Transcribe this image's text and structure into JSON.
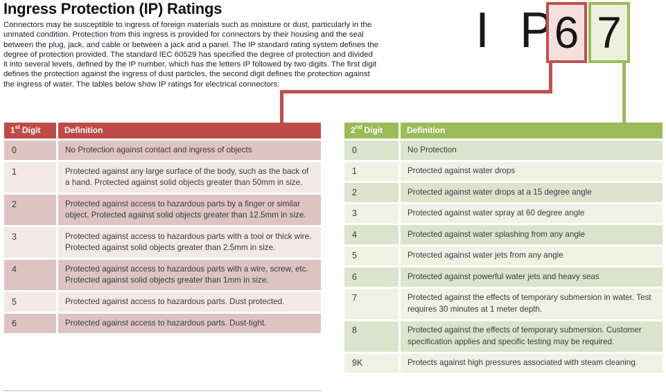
{
  "theme": {
    "red_accent": "#c0504d",
    "red_header_bg": "#bf4b48",
    "red_row_dark": "#ddc4c2",
    "red_row_light": "#f2e8e7",
    "red_box_fill": "#f4dfde",
    "green_accent": "#9bbb59",
    "green_header_bg": "#9bbb59",
    "green_row_dark": "#dce3cc",
    "green_row_light": "#eff1e4",
    "green_box_fill": "#ecf0dd",
    "text_ink": "#20202b",
    "table_text": "#3b3b40"
  },
  "header": {
    "title": "Ingress Protection (IP) Ratings",
    "intro": "Connectors may be susceptible to ingress of foreign materials such as moisture or dust, particularly in the unmated condition. Protection from this ingress is provided for connectors by their housing and the seal between the plug, jack, and cable or between a jack and a panel. The IP standard rating system defines the degree of protection provided. The standard IEC 60529 has specified the degree of protection and divided it into several levels, defined by the IP number, which has the letters IP followed by two digits. The first digit defines the protection against the ingress of dust particles, the second digit defines the protection against the ingress of water. The tables below show IP ratings for electrical connectors:"
  },
  "ip_example": {
    "prefix": "I P",
    "first_digit": "6",
    "second_digit": "7"
  },
  "first_digit_table": {
    "header": {
      "number": "1",
      "ordinal": "st",
      "word": "Digit",
      "definition": "Definition"
    },
    "rows": [
      {
        "digit": "0",
        "definition": "No Protection against contact and ingress of objects"
      },
      {
        "digit": "1",
        "definition": "Protected against any large surface of the body, such as the back of a hand. Protected against solid objects greater than 50mm in size."
      },
      {
        "digit": "2",
        "definition": "Protected against access to hazardous parts by a finger or similar object. Protected against solid objects greater than 12.5mm in size."
      },
      {
        "digit": "3",
        "definition": "Protected against access to hazardous parts with a tool or thick wire. Protected against solid objects greater than 2.5mm in size."
      },
      {
        "digit": "4",
        "definition": "Protected against access to hazardous parts with a wire, screw, etc. Protected against solid objects greater than 1mm in size."
      },
      {
        "digit": "5",
        "definition": "Protected against access to hazardous parts. Dust protected."
      },
      {
        "digit": "6",
        "definition": "Protected against access to hazardous parts. Dust-tight."
      }
    ]
  },
  "second_digit_table": {
    "header": {
      "number": "2",
      "ordinal": "nd",
      "word": "Digit",
      "definition": "Definition"
    },
    "rows": [
      {
        "digit": "0",
        "definition": "No Protection"
      },
      {
        "digit": "1",
        "definition": "Protected against water drops"
      },
      {
        "digit": "2",
        "definition": "Protected against water drops at a 15 degree angle"
      },
      {
        "digit": "3",
        "definition": "Protected against water spray at 60 degree angle"
      },
      {
        "digit": "4",
        "definition": "Protected against water splashing from any angle"
      },
      {
        "digit": "5",
        "definition": "Protected against water jets from any angle"
      },
      {
        "digit": "6",
        "definition": "Protected against powerful water jets and heavy seas"
      },
      {
        "digit": "7",
        "definition": "Protected against the effects of temporary submersion in water. Test requires 30 minutes at 1 meter depth."
      },
      {
        "digit": "8",
        "definition": "Protected against the effects of temporary submersion. Customer specification applies and specific testing may be required."
      },
      {
        "digit": "9K",
        "definition": "Protects against high pressures associated with steam cleaning."
      }
    ]
  }
}
